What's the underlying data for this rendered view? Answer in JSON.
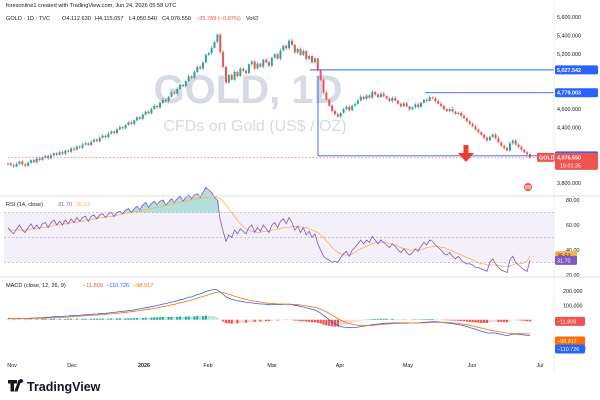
{
  "header": {
    "credit": "forexonline1 created with TradingView.com, Jun 24, 2026 05:58 UTC",
    "symbol": "GOLD · 1D · TVC",
    "ohlc_o": "O4,112.630",
    "ohlc_h": "H4,115.057",
    "ohlc_l": "L4,050.540",
    "ohlc_c": "C4,076.550",
    "ohlc_chg": "−35.789 (−0.87%)",
    "vol": "Vol∅"
  },
  "watermark": {
    "main": "GOLD, 1D",
    "sub": "CFDs on Gold (US$ / OZ)"
  },
  "brand": {
    "name": "TradingView"
  },
  "colors": {
    "up": "#26a69a",
    "down": "#ef5350",
    "level": "#2962ff",
    "rsi": "#7e57c2",
    "rsi_ma": "#f7b64f",
    "macd": "#2962ff",
    "signal": "#ff6d00"
  },
  "price_panel": {
    "axis_ticks": [
      "5,600.000",
      "5,400.000",
      "5,200.000",
      "4,600.000",
      "4,400.000",
      "3,800.000"
    ],
    "levels": [
      {
        "label": "5,027.542",
        "value": 5027.542
      },
      {
        "label": "4,779.003",
        "value": 4779.003
      },
      {
        "label": "4,093.287",
        "value": 4093.287
      }
    ],
    "last_price": {
      "symbol": "GOLD",
      "label": "4,076.550",
      "countdown": "15:01:35",
      "value": 4076.55
    }
  },
  "rsi_panel": {
    "label": "RSI (14, close)",
    "rsi_value": "31.70",
    "ma_value": "35.53",
    "axis_ticks": [
      "80.00",
      "60.00",
      "40.00",
      "20.00"
    ],
    "pills": [
      "35.53",
      "31.70"
    ]
  },
  "macd_panel": {
    "label": "MACD (close, 12, 26, 9)",
    "hist_value": "−11.809",
    "macd_value": "−110.726",
    "signal_value": "−98.917",
    "axis_ticks": [
      "200.000",
      "100.000",
      "−200.000"
    ],
    "pills": [
      "−11.809",
      "−98.917",
      "−110.726"
    ]
  },
  "x_axis": {
    "labels": [
      "Nov",
      "Dec",
      "2026",
      "Feb",
      "Mar",
      "Apr",
      "May",
      "Jun",
      "Jul"
    ]
  },
  "chart_data": {
    "type": "candlestick",
    "interval": "1D",
    "price_ylim": [
      3700,
      5700
    ],
    "rsi_ylim": [
      20,
      80
    ],
    "macd_ylim": [
      -240,
      250
    ],
    "price_close": [
      4010,
      3992,
      3978,
      4005,
      4032,
      4001,
      3985,
      4018,
      4046,
      4022,
      4064,
      4048,
      4075,
      4090,
      4066,
      4098,
      4121,
      4105,
      4132,
      4116,
      4150,
      4138,
      4172,
      4160,
      4194,
      4182,
      4214,
      4230,
      4212,
      4246,
      4268,
      4252,
      4290,
      4312,
      4296,
      4334,
      4358,
      4342,
      4380,
      4405,
      4392,
      4428,
      4456,
      4440,
      4478,
      4512,
      4496,
      4540,
      4574,
      4556,
      4602,
      4636,
      4620,
      4668,
      4702,
      4688,
      4736,
      4782,
      4768,
      4820,
      4866,
      4850,
      4905,
      4958,
      4942,
      5004,
      5060,
      5042,
      5108,
      5190,
      5210,
      5268,
      5330,
      5410,
      5220,
      5060,
      4890,
      4972,
      4920,
      5005,
      4960,
      5040,
      5018,
      4992,
      5088,
      5120,
      5042,
      5096,
      5062,
      5138,
      5110,
      5072,
      5160,
      5196,
      5150,
      5238,
      5290,
      5262,
      5345,
      5300,
      5218,
      5256,
      5190,
      5232,
      5146,
      5178,
      5110,
      5152,
      5020,
      4920,
      4780,
      4705,
      4640,
      4580,
      4545,
      4520,
      4560,
      4600,
      4626,
      4588,
      4640,
      4660,
      4694,
      4736,
      4712,
      4750,
      4724,
      4788,
      4760,
      4732,
      4768,
      4742,
      4716,
      4688,
      4722,
      4694,
      4660,
      4632,
      4664,
      4630,
      4598,
      4620,
      4652,
      4624,
      4670,
      4702,
      4690,
      4730,
      4720,
      4688,
      4660,
      4634,
      4600,
      4578,
      4602,
      4574,
      4548,
      4560,
      4528,
      4502,
      4470,
      4440,
      4414,
      4380,
      4350,
      4322,
      4290,
      4262,
      4300,
      4325,
      4285,
      4240,
      4202,
      4178,
      4150,
      4230,
      4260,
      4215,
      4190,
      4160,
      4130,
      4112,
      4076
    ],
    "rsi": [
      58,
      55,
      53,
      57,
      60,
      56,
      54,
      58,
      61,
      57,
      60,
      57,
      61,
      62,
      58,
      62,
      64,
      60,
      63,
      60,
      64,
      61,
      65,
      62,
      66,
      63,
      66,
      67,
      63,
      67,
      68,
      65,
      68,
      69,
      66,
      69,
      70,
      67,
      70,
      71,
      69,
      72,
      73,
      70,
      73,
      75,
      72,
      76,
      78,
      74,
      77,
      79,
      76,
      79,
      80,
      76,
      78,
      81,
      78,
      81,
      83,
      79,
      82,
      84,
      81,
      84,
      85,
      82,
      86,
      90,
      88,
      86,
      82,
      80,
      64,
      55,
      47,
      52,
      50,
      56,
      53,
      57,
      55,
      53,
      58,
      60,
      54,
      58,
      55,
      60,
      57,
      54,
      60,
      62,
      58,
      63,
      65,
      61,
      66,
      62,
      56,
      59,
      54,
      58,
      52,
      55,
      50,
      53,
      45,
      40,
      35,
      33,
      32,
      30,
      31,
      30,
      34,
      37,
      39,
      35,
      40,
      42,
      45,
      48,
      45,
      48,
      46,
      51,
      48,
      45,
      48,
      46,
      44,
      42,
      45,
      43,
      40,
      38,
      41,
      38,
      36,
      38,
      41,
      39,
      43,
      46,
      44,
      48,
      47,
      44,
      42,
      40,
      37,
      36,
      38,
      35,
      33,
      35,
      32,
      30,
      29,
      29,
      28,
      26,
      26,
      25,
      24,
      23,
      30,
      33,
      29,
      26,
      24,
      23,
      22,
      32,
      35,
      30,
      28,
      26,
      24,
      23,
      31.7
    ],
    "rsi_ma": [
      56,
      56,
      56,
      56,
      56,
      56,
      56,
      56,
      57,
      57,
      57,
      58,
      58,
      58,
      59,
      59,
      60,
      60,
      60,
      61,
      61,
      61,
      62,
      62,
      62,
      63,
      63,
      64,
      64,
      64,
      65,
      65,
      66,
      66,
      66,
      67,
      67,
      67,
      68,
      68,
      69,
      69,
      70,
      70,
      70,
      71,
      71,
      72,
      72,
      73,
      73,
      74,
      74,
      75,
      75,
      76,
      76,
      77,
      77,
      78,
      78,
      79,
      79,
      80,
      80,
      81,
      81,
      81,
      82,
      82,
      82,
      83,
      83,
      82,
      81,
      79,
      76,
      73,
      70,
      67,
      64,
      61,
      59,
      57,
      56,
      55,
      55,
      54,
      54,
      55,
      55,
      55,
      56,
      56,
      57,
      57,
      58,
      58,
      58,
      59,
      59,
      59,
      59,
      58,
      58,
      57,
      56,
      55,
      54,
      52,
      50,
      47,
      45,
      42,
      40,
      38,
      37,
      36,
      36,
      36,
      37,
      38,
      40,
      41,
      42,
      43,
      44,
      45,
      46,
      46,
      46,
      46,
      46,
      45,
      45,
      44,
      43,
      42,
      41,
      41,
      40,
      40,
      40,
      40,
      40,
      41,
      42,
      42,
      43,
      43,
      43,
      42,
      42,
      41,
      40,
      39,
      38,
      37,
      36,
      35,
      34,
      33,
      32,
      31,
      30,
      29,
      29,
      28,
      28,
      28,
      28,
      28,
      27,
      27,
      27,
      27,
      28,
      29,
      29,
      29,
      30,
      31,
      35.53
    ],
    "macd": [
      10,
      8,
      6,
      7,
      9,
      8,
      7,
      9,
      11,
      11,
      13,
      13,
      15,
      17,
      17,
      19,
      21,
      21,
      23,
      23,
      25,
      26,
      28,
      28,
      30,
      31,
      33,
      35,
      35,
      37,
      39,
      40,
      42,
      44,
      45,
      47,
      50,
      51,
      54,
      57,
      58,
      61,
      64,
      66,
      69,
      73,
      75,
      79,
      84,
      86,
      91,
      96,
      99,
      104,
      110,
      113,
      118,
      124,
      127,
      133,
      140,
      143,
      150,
      157,
      160,
      168,
      176,
      180,
      188,
      198,
      203,
      208,
      212,
      208,
      195,
      178,
      160,
      152,
      143,
      138,
      132,
      130,
      126,
      121,
      120,
      118,
      114,
      113,
      110,
      110,
      108,
      105,
      106,
      107,
      105,
      106,
      108,
      107,
      108,
      106,
      101,
      98,
      92,
      89,
      83,
      79,
      72,
      68,
      58,
      46,
      30,
      15,
      0,
      -15,
      -28,
      -40,
      -48,
      -52,
      -54,
      -56,
      -55,
      -54,
      -52,
      -48,
      -46,
      -42,
      -40,
      -35,
      -32,
      -30,
      -27,
      -25,
      -24,
      -24,
      -22,
      -22,
      -22,
      -23,
      -22,
      -23,
      -24,
      -24,
      -23,
      -23,
      -21,
      -18,
      -17,
      -15,
      -14,
      -14,
      -15,
      -17,
      -20,
      -23,
      -25,
      -28,
      -31,
      -34,
      -38,
      -43,
      -48,
      -55,
      -61,
      -67,
      -74,
      -80,
      -86,
      -92,
      -93,
      -92,
      -94,
      -98,
      -103,
      -107,
      -111,
      -106,
      -101,
      -100,
      -102,
      -104,
      -107,
      -109,
      -110.726
    ],
    "signal": [
      8,
      8,
      8,
      8,
      8,
      8,
      8,
      8,
      8,
      9,
      9,
      10,
      10,
      11,
      12,
      13,
      14,
      15,
      16,
      17,
      18,
      19,
      21,
      22,
      23,
      25,
      26,
      28,
      29,
      30,
      32,
      33,
      35,
      36,
      38,
      40,
      41,
      43,
      45,
      47,
      49,
      52,
      54,
      56,
      59,
      61,
      64,
      67,
      70,
      73,
      76,
      80,
      83,
      87,
      91,
      95,
      99,
      104,
      108,
      113,
      118,
      123,
      129,
      134,
      139,
      145,
      151,
      157,
      163,
      169,
      176,
      182,
      188,
      192,
      193,
      190,
      184,
      178,
      171,
      164,
      158,
      152,
      147,
      142,
      137,
      133,
      130,
      126,
      123,
      120,
      118,
      115,
      114,
      112,
      111,
      110,
      110,
      109,
      109,
      108,
      107,
      105,
      103,
      100,
      97,
      94,
      90,
      86,
      80,
      73,
      65,
      55,
      44,
      32,
      20,
      8,
      -3,
      -12,
      -20,
      -27,
      -32,
      -36,
      -39,
      -41,
      -42,
      -42,
      -41,
      -40,
      -38,
      -36,
      -34,
      -32,
      -31,
      -29,
      -28,
      -27,
      -26,
      -25,
      -25,
      -25,
      -24,
      -24,
      -24,
      -24,
      -23,
      -22,
      -21,
      -20,
      -19,
      -18,
      -18,
      -18,
      -18,
      -19,
      -20,
      -22,
      -24,
      -26,
      -29,
      -32,
      -35,
      -39,
      -43,
      -48,
      -53,
      -58,
      -63,
      -69,
      -73,
      -77,
      -80,
      -83,
      -87,
      -90,
      -93,
      -95,
      -96,
      -97,
      -98,
      -98,
      -99,
      -99,
      -98.917
    ]
  }
}
